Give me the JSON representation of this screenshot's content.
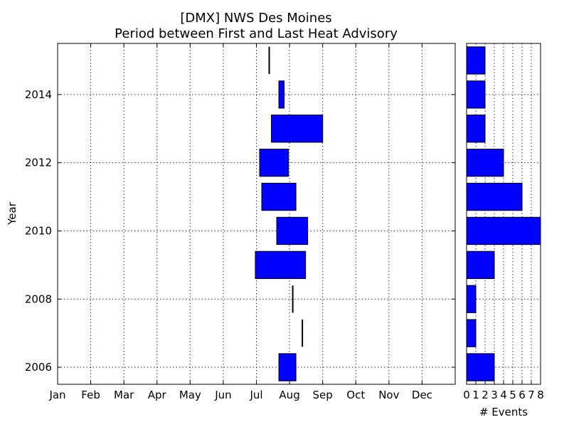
{
  "chart_data": [
    {
      "type": "bar",
      "orientation": "horizontal-range",
      "title": "[DMX] NWS Des Moines",
      "subtitle": "Period between First and Last Heat Advisory",
      "xlabel": "",
      "ylabel": "Year",
      "xlim_month": [
        1,
        13
      ],
      "ylim": [
        2005.5,
        2015.5
      ],
      "x_tick_labels": [
        "Jan",
        "Feb",
        "Mar",
        "Apr",
        "May",
        "Jun",
        "Jul",
        "Aug",
        "Sep",
        "Oct",
        "Nov",
        "Dec"
      ],
      "y_ticks": [
        2006,
        2008,
        2010,
        2012,
        2014
      ],
      "grid": true,
      "color": "#0000ff",
      "ranges": [
        {
          "year": 2006,
          "start": "Jul 22",
          "end": "Aug 07"
        },
        {
          "year": 2007,
          "start": "Aug 13",
          "end": "Aug 13"
        },
        {
          "year": 2008,
          "start": "Aug 04",
          "end": "Aug 04"
        },
        {
          "year": 2009,
          "start": "Jun 30",
          "end": "Aug 16"
        },
        {
          "year": 2010,
          "start": "Jul 20",
          "end": "Aug 18"
        },
        {
          "year": 2011,
          "start": "Jul 06",
          "end": "Aug 07"
        },
        {
          "year": 2012,
          "start": "Jul 04",
          "end": "Jul 31"
        },
        {
          "year": 2013,
          "start": "Jul 15",
          "end": "Sep 01"
        },
        {
          "year": 2014,
          "start": "Jul 22",
          "end": "Jul 27"
        },
        {
          "year": 2015,
          "start": "Jul 13",
          "end": "Jul 13"
        }
      ]
    },
    {
      "type": "bar",
      "orientation": "horizontal",
      "xlabel": "# Events",
      "ylabel": "",
      "xlim": [
        0,
        8
      ],
      "x_ticks": [
        0,
        1,
        2,
        3,
        4,
        5,
        6,
        7,
        8
      ],
      "grid": true,
      "color": "#0000ff",
      "categories": [
        2006,
        2007,
        2008,
        2009,
        2010,
        2011,
        2012,
        2013,
        2014,
        2015
      ],
      "values": [
        3,
        1,
        1,
        3,
        8,
        6,
        4,
        2,
        2,
        2
      ]
    }
  ]
}
